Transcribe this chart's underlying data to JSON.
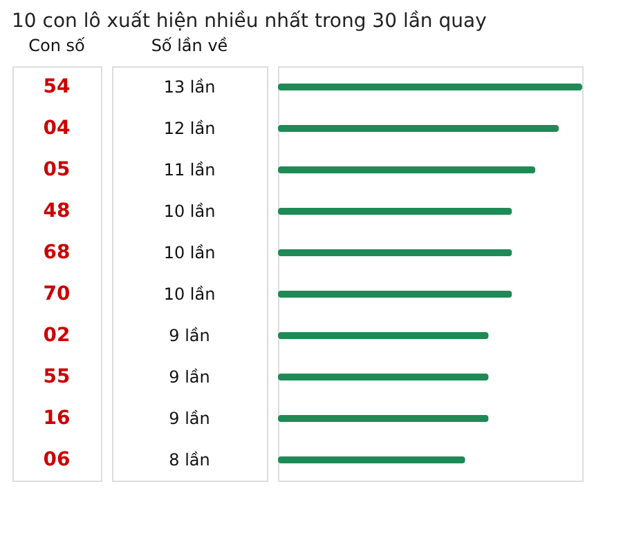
{
  "chart_data": {
    "type": "bar",
    "orientation": "horizontal",
    "title": "10 con lô xuất hiện nhiều nhất trong 30 lần quay",
    "ylabel": "Con số",
    "xlabel": "Số lần về",
    "categories": [
      "54",
      "04",
      "05",
      "48",
      "68",
      "70",
      "02",
      "55",
      "16",
      "06"
    ],
    "values": [
      13,
      12,
      11,
      10,
      10,
      10,
      9,
      9,
      9,
      8
    ],
    "value_labels": [
      "13 lần",
      "12 lần",
      "11 lần",
      "10 lần",
      "10 lần",
      "10 lần",
      "9 lần",
      "9 lần",
      "9 lần",
      "8 lần"
    ],
    "color": "#1e8a56"
  }
}
